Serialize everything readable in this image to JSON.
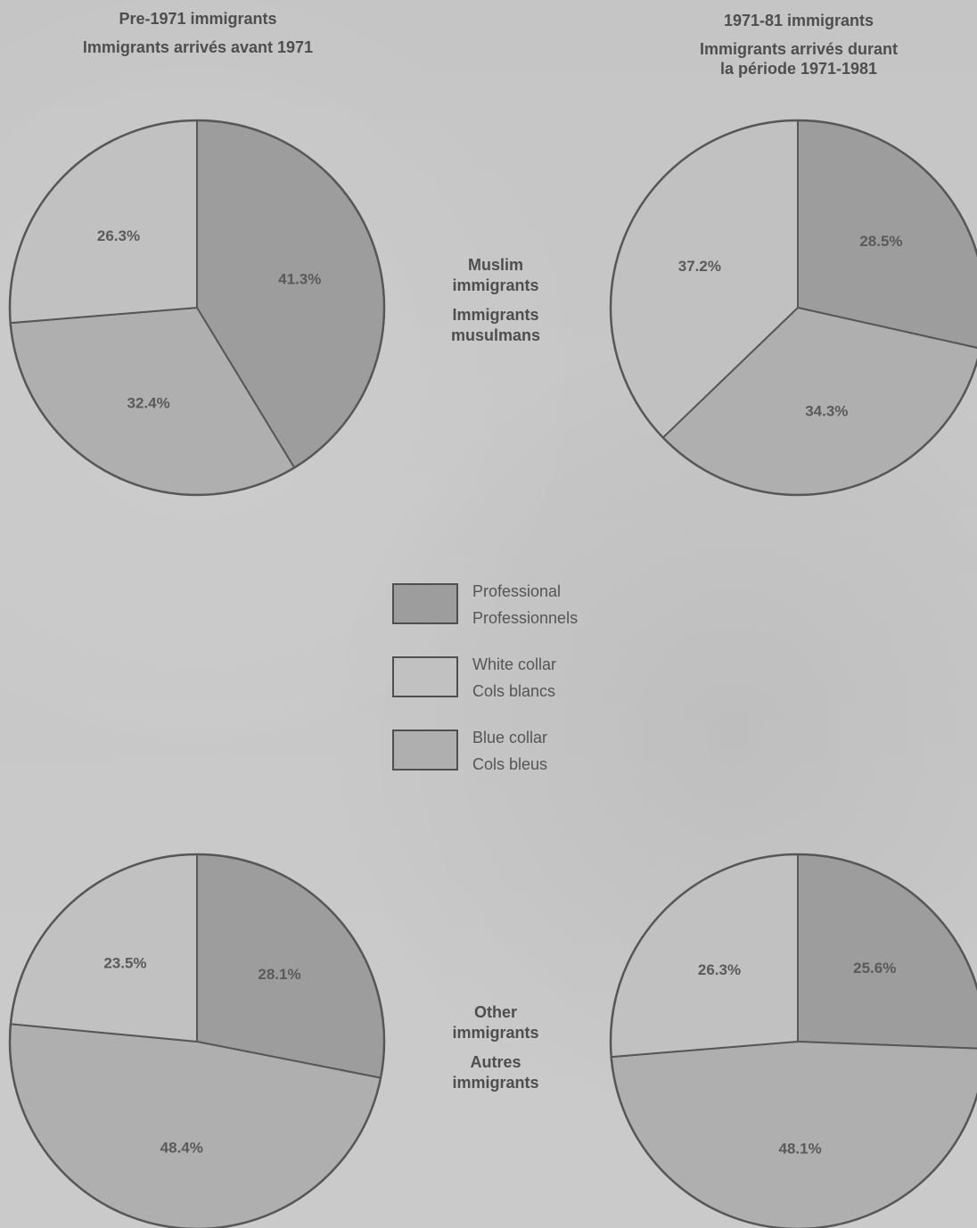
{
  "colors": {
    "professional": "#9d9d9d",
    "white_collar": "#c1c1c1",
    "blue_collar": "#afafaf",
    "outline": "#575757"
  },
  "columns": {
    "left": {
      "title_en": "Pre-1971 immigrants",
      "title_fr": "Immigrants arrivés avant 1971"
    },
    "right": {
      "title_en": "1971-81 immigrants",
      "title_fr_1": "Immigrants arrivés durant",
      "title_fr_2": "la période 1971-1981"
    }
  },
  "rows": {
    "top": {
      "en_1": "Muslim",
      "en_2": "immigrants",
      "fr_1": "Immigrants",
      "fr_2": "musulmans"
    },
    "bottom": {
      "en_1": "Other",
      "en_2": "immigrants",
      "fr_1": "Autres",
      "fr_2": "immigrants"
    }
  },
  "legend": [
    {
      "key": "professional",
      "en": "Professional",
      "fr": "Professionnels"
    },
    {
      "key": "white_collar",
      "en": "White collar",
      "fr": "Cols blancs"
    },
    {
      "key": "blue_collar",
      "en": "Blue collar",
      "fr": "Cols bleus"
    }
  ],
  "chart_data": [
    {
      "type": "pie",
      "group": "Muslim immigrants",
      "period": "Pre-1971 immigrants",
      "slices": [
        {
          "label": "Professional",
          "value": 41.3,
          "display": "41.3%"
        },
        {
          "label": "Blue collar",
          "value": 32.4,
          "display": "32.4%"
        },
        {
          "label": "White collar",
          "value": 26.3,
          "display": "26.3%"
        }
      ]
    },
    {
      "type": "pie",
      "group": "Muslim immigrants",
      "period": "1971-81 immigrants",
      "slices": [
        {
          "label": "Professional",
          "value": 28.5,
          "display": "28.5%"
        },
        {
          "label": "Blue collar",
          "value": 34.3,
          "display": "34.3%"
        },
        {
          "label": "White collar",
          "value": 37.2,
          "display": "37.2%"
        }
      ]
    },
    {
      "type": "pie",
      "group": "Other immigrants",
      "period": "Pre-1971 immigrants",
      "slices": [
        {
          "label": "Professional",
          "value": 28.1,
          "display": "28.1%"
        },
        {
          "label": "Blue collar",
          "value": 48.4,
          "display": "48.4%"
        },
        {
          "label": "White collar",
          "value": 23.5,
          "display": "23.5%"
        }
      ]
    },
    {
      "type": "pie",
      "group": "Other immigrants",
      "period": "1971-81 immigrants",
      "slices": [
        {
          "label": "Professional",
          "value": 25.6,
          "display": "25.6%"
        },
        {
          "label": "Blue collar",
          "value": 48.1,
          "display": "48.1%"
        },
        {
          "label": "White collar",
          "value": 26.3,
          "display": "26.3%"
        }
      ]
    }
  ]
}
